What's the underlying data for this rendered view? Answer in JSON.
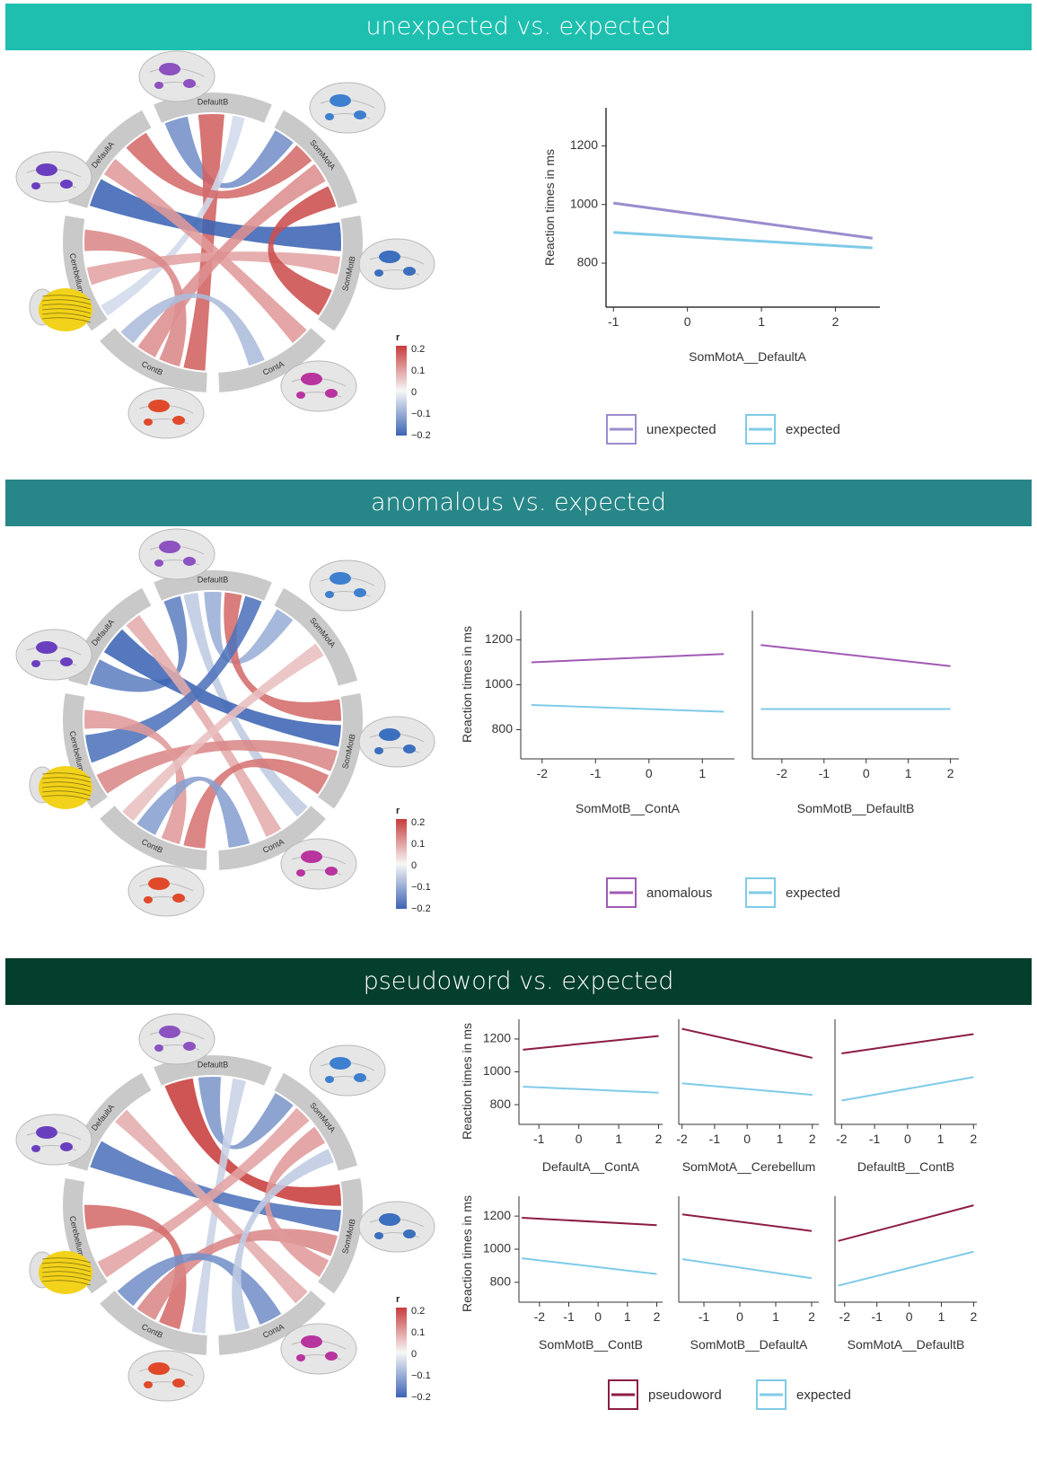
{
  "sections": [
    {
      "title": "unexpected vs. expected",
      "color": "#1ebfaf"
    },
    {
      "title": "anomalous vs. expected",
      "color": "#278687"
    },
    {
      "title": "pseudoword vs. expected",
      "color": "#043e2c"
    }
  ],
  "networks": [
    "DefaultB",
    "SomMotA",
    "SomMotB",
    "ContA",
    "ContB",
    "Cerebellum",
    "DefaultA"
  ],
  "network_colors": {
    "DefaultB": "#8b52c0",
    "SomMotA": "#3f7fcf",
    "SomMotB": "#3c6fbe",
    "ContA": "#b8349e",
    "ContB": "#e04a2a",
    "Cerebellum": "#f2d21a",
    "DefaultA": "#6a3fbf"
  },
  "colorbar": {
    "title": "r",
    "ticks": [
      "0.2",
      "0.1",
      "0",
      "−0.1",
      "−0.2"
    ]
  },
  "chart_data": [
    {
      "type": "line",
      "ylabel": "Reaction times in ms",
      "ylim": [
        650,
        1330
      ],
      "yticks": [
        800,
        1000,
        1200
      ],
      "panels": [
        {
          "xlabel": "SomMotA__DefaultA",
          "xlim": [
            -1.1,
            2.6
          ],
          "xticks": [
            -1,
            0,
            1,
            2
          ],
          "series": [
            {
              "name": "unexpected",
              "x": [
                -1,
                2.5
              ],
              "y": [
                1005,
                885
              ]
            },
            {
              "name": "expected",
              "x": [
                -1,
                2.5
              ],
              "y": [
                905,
                852
              ]
            }
          ]
        }
      ],
      "legend": [
        {
          "label": "unexpected",
          "color": "#9b8cce"
        },
        {
          "label": "expected",
          "color": "#7fcbe7"
        }
      ]
    },
    {
      "type": "line",
      "ylabel": "Reaction times in ms",
      "ylim": [
        670,
        1330
      ],
      "yticks": [
        800,
        1000,
        1200
      ],
      "panels": [
        {
          "xlabel": "SomMotB__ContA",
          "xlim": [
            -2.4,
            1.6
          ],
          "xticks": [
            -2,
            -1,
            0,
            1
          ],
          "series": [
            {
              "name": "anomalous",
              "x": [
                -2.2,
                1.4
              ],
              "y": [
                1100,
                1137
              ]
            },
            {
              "name": "expected",
              "x": [
                -2.2,
                1.4
              ],
              "y": [
                910,
                880
              ]
            }
          ]
        },
        {
          "xlabel": "SomMotB__DefaultB",
          "xlim": [
            -2.7,
            2.2
          ],
          "xticks": [
            -2,
            -1,
            0,
            1,
            2
          ],
          "series": [
            {
              "name": "anomalous",
              "x": [
                -2.5,
                2.0
              ],
              "y": [
                1177,
                1083
              ]
            },
            {
              "name": "expected",
              "x": [
                -2.5,
                2.0
              ],
              "y": [
                892,
                892
              ]
            }
          ]
        }
      ],
      "legend": [
        {
          "label": "anomalous",
          "color": "#a05ab3"
        },
        {
          "label": "expected",
          "color": "#7fcbe7"
        }
      ]
    },
    {
      "type": "line",
      "ylabel": "Reaction times in ms",
      "ylim": [
        680,
        1320
      ],
      "yticks": [
        800,
        1000,
        1200
      ],
      "panels": [
        {
          "xlabel": "DefaultA__ContA",
          "xlim": [
            -1.5,
            2.1
          ],
          "xticks": [
            -1,
            0,
            1,
            2
          ],
          "series": [
            {
              "name": "pseudoword",
              "x": [
                -1.4,
                2.0
              ],
              "y": [
                1135,
                1218
              ]
            },
            {
              "name": "expected",
              "x": [
                -1.4,
                2.0
              ],
              "y": [
                910,
                873
              ]
            }
          ]
        },
        {
          "xlabel": "SomMotA__Cerebellum",
          "xlim": [
            -2.1,
            2.2
          ],
          "xticks": [
            -2,
            -1,
            0,
            1,
            2
          ],
          "series": [
            {
              "name": "pseudoword",
              "x": [
                -2.0,
                2.0
              ],
              "y": [
                1262,
                1085
              ]
            },
            {
              "name": "expected",
              "x": [
                -2.0,
                2.0
              ],
              "y": [
                930,
                860
              ]
            }
          ]
        },
        {
          "xlabel": "DefaultB__ContB",
          "xlim": [
            -2.2,
            2.1
          ],
          "xticks": [
            -2,
            -1,
            0,
            1,
            2
          ],
          "series": [
            {
              "name": "pseudoword",
              "x": [
                -2.0,
                2.0
              ],
              "y": [
                1112,
                1230
              ]
            },
            {
              "name": "expected",
              "x": [
                -2.0,
                2.0
              ],
              "y": [
                825,
                968
              ]
            }
          ]
        },
        {
          "xlabel": "SomMotB__ContB",
          "xlim": [
            -2.7,
            2.2
          ],
          "xticks": [
            -2,
            -1,
            0,
            1,
            2
          ],
          "series": [
            {
              "name": "pseudoword",
              "x": [
                -2.6,
                2.0
              ],
              "y": [
                1190,
                1145
              ]
            },
            {
              "name": "expected",
              "x": [
                -2.6,
                2.0
              ],
              "y": [
                945,
                850
              ]
            }
          ]
        },
        {
          "xlabel": "SomMotB__DefaultA",
          "xlim": [
            -1.7,
            2.2
          ],
          "xticks": [
            -1,
            0,
            1,
            2
          ],
          "series": [
            {
              "name": "pseudoword",
              "x": [
                -1.6,
                2.0
              ],
              "y": [
                1210,
                1110
              ]
            },
            {
              "name": "expected",
              "x": [
                -1.6,
                2.0
              ],
              "y": [
                940,
                825
              ]
            }
          ]
        },
        {
          "xlabel": "SomMotA__DefaultB",
          "xlim": [
            -2.3,
            2.1
          ],
          "xticks": [
            -2,
            -1,
            0,
            1,
            2
          ],
          "series": [
            {
              "name": "pseudoword",
              "x": [
                -2.2,
                2.0
              ],
              "y": [
                1050,
                1265
              ]
            },
            {
              "name": "expected",
              "x": [
                -2.2,
                2.0
              ],
              "y": [
                780,
                985
              ]
            }
          ]
        }
      ],
      "legend": [
        {
          "label": "pseudoword",
          "color": "#8c1c45"
        },
        {
          "label": "expected",
          "color": "#7fcbe7"
        }
      ]
    }
  ],
  "chords": [
    [
      {
        "from": "DefaultB",
        "to": "SomMotA",
        "r": -0.14
      },
      {
        "from": "DefaultB",
        "to": "ContB",
        "r": 0.16
      },
      {
        "from": "DefaultB",
        "to": "Cerebellum",
        "r": -0.04
      },
      {
        "from": "DefaultA",
        "to": "SomMotB",
        "r": -0.2
      },
      {
        "from": "DefaultA",
        "to": "ContA",
        "r": 0.1
      },
      {
        "from": "DefaultA",
        "to": "SomMotA",
        "r": 0.15
      },
      {
        "from": "Cerebellum",
        "to": "SomMotB",
        "r": 0.09
      },
      {
        "from": "Cerebellum",
        "to": "ContB",
        "r": 0.12
      },
      {
        "from": "ContB",
        "to": "SomMotA",
        "r": 0.11
      },
      {
        "from": "ContA",
        "to": "ContB",
        "r": -0.08
      },
      {
        "from": "SomMotA",
        "to": "SomMotB",
        "r": 0.18
      }
    ],
    [
      {
        "from": "DefaultB",
        "to": "DefaultA",
        "r": -0.16
      },
      {
        "from": "DefaultB",
        "to": "ContA",
        "r": -0.06
      },
      {
        "from": "DefaultB",
        "to": "SomMotA",
        "r": -0.1
      },
      {
        "from": "DefaultB",
        "to": "SomMotB",
        "r": 0.15
      },
      {
        "from": "DefaultA",
        "to": "SomMotB",
        "r": -0.2
      },
      {
        "from": "DefaultA",
        "to": "ContA",
        "r": 0.08
      },
      {
        "from": "Cerebellum",
        "to": "SomMotB",
        "r": 0.12
      },
      {
        "from": "Cerebellum",
        "to": "DefaultB",
        "r": -0.18
      },
      {
        "from": "ContB",
        "to": "SomMotB",
        "r": 0.14
      },
      {
        "from": "ContB",
        "to": "Cerebellum",
        "r": 0.1
      },
      {
        "from": "ContA",
        "to": "ContB",
        "r": -0.12
      },
      {
        "from": "SomMotA",
        "to": "ContB",
        "r": 0.06
      }
    ],
    [
      {
        "from": "DefaultB",
        "to": "SomMotB",
        "r": 0.2
      },
      {
        "from": "DefaultB",
        "to": "SomMotA",
        "r": -0.13
      },
      {
        "from": "DefaultB",
        "to": "ContB",
        "r": -0.05
      },
      {
        "from": "DefaultA",
        "to": "SomMotB",
        "r": -0.18
      },
      {
        "from": "DefaultA",
        "to": "ContA",
        "r": 0.08
      },
      {
        "from": "Cerebellum",
        "to": "SomMotA",
        "r": 0.09
      },
      {
        "from": "Cerebellum",
        "to": "ContB",
        "r": 0.15
      },
      {
        "from": "ContB",
        "to": "SomMotB",
        "r": 0.12
      },
      {
        "from": "ContA",
        "to": "ContB",
        "r": -0.14
      },
      {
        "from": "SomMotA",
        "to": "SomMotB",
        "r": 0.1
      },
      {
        "from": "SomMotA",
        "to": "ContA",
        "r": -0.06
      }
    ]
  ]
}
